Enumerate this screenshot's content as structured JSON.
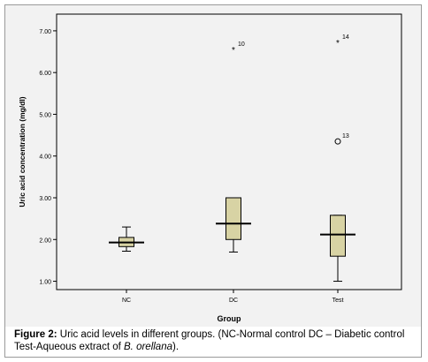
{
  "chart_data": {
    "type": "boxplot",
    "ylabel": "Uric acid concentration (mg/dl)",
    "xlabel": "Group",
    "ylim": [
      0.8,
      7.4
    ],
    "yticks": [
      "1.00",
      "2.00",
      "3.00",
      "4.00",
      "5.00",
      "6.00",
      "7.00"
    ],
    "ytick_values": [
      1,
      2,
      3,
      4,
      5,
      6,
      7
    ],
    "box_color": "#d8d3a4",
    "groups": [
      {
        "name": "NC",
        "min": 1.72,
        "q1": 1.83,
        "median": 1.93,
        "q3": 2.05,
        "max": 2.3,
        "outliers": []
      },
      {
        "name": "DC",
        "min": 1.7,
        "q1": 2.0,
        "median": 2.38,
        "q3": 3.0,
        "max": 3.0,
        "outliers": [
          {
            "value": 6.55,
            "label": "10",
            "marker": "*"
          }
        ]
      },
      {
        "name": "Test",
        "min": 1.0,
        "q1": 1.6,
        "median": 2.12,
        "q3": 2.58,
        "max": 2.58,
        "outliers": [
          {
            "value": 4.35,
            "label": "13",
            "marker": "o"
          },
          {
            "value": 6.72,
            "label": "14",
            "marker": "*"
          }
        ]
      }
    ]
  },
  "caption": {
    "label": "Figure 2:",
    "text": " Uric acid levels in different groups. (NC-Normal control DC – Diabetic control Test-Aqueous extract of ",
    "species": "B. orellana",
    "end": ")."
  }
}
